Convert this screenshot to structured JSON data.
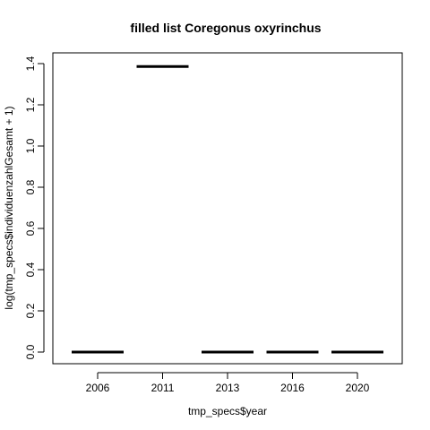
{
  "chart_data": {
    "type": "bar",
    "title": "filled list Coregonus oxyrinchus",
    "xlabel": "tmp_specs$year",
    "ylabel": "log(tmp_specs$individuenzahlGesamt + 1)",
    "categories": [
      "2006",
      "2011",
      "2013",
      "2016",
      "2020"
    ],
    "values": [
      0.0,
      1.386,
      0.0,
      0.0,
      0.0
    ],
    "ylim": [
      -0.06,
      1.44
    ],
    "yticks": [
      0.0,
      0.2,
      0.4,
      0.6,
      0.8,
      1.0,
      1.2,
      1.4
    ],
    "ytick_labels": [
      "0.0",
      "0.2",
      "0.4",
      "0.6",
      "0.8",
      "1.0",
      "1.2",
      "1.4"
    ],
    "grid": false,
    "legend": "none",
    "colors": {
      "median_line": "#000000",
      "axis": "#000000",
      "background": "#ffffff"
    }
  }
}
